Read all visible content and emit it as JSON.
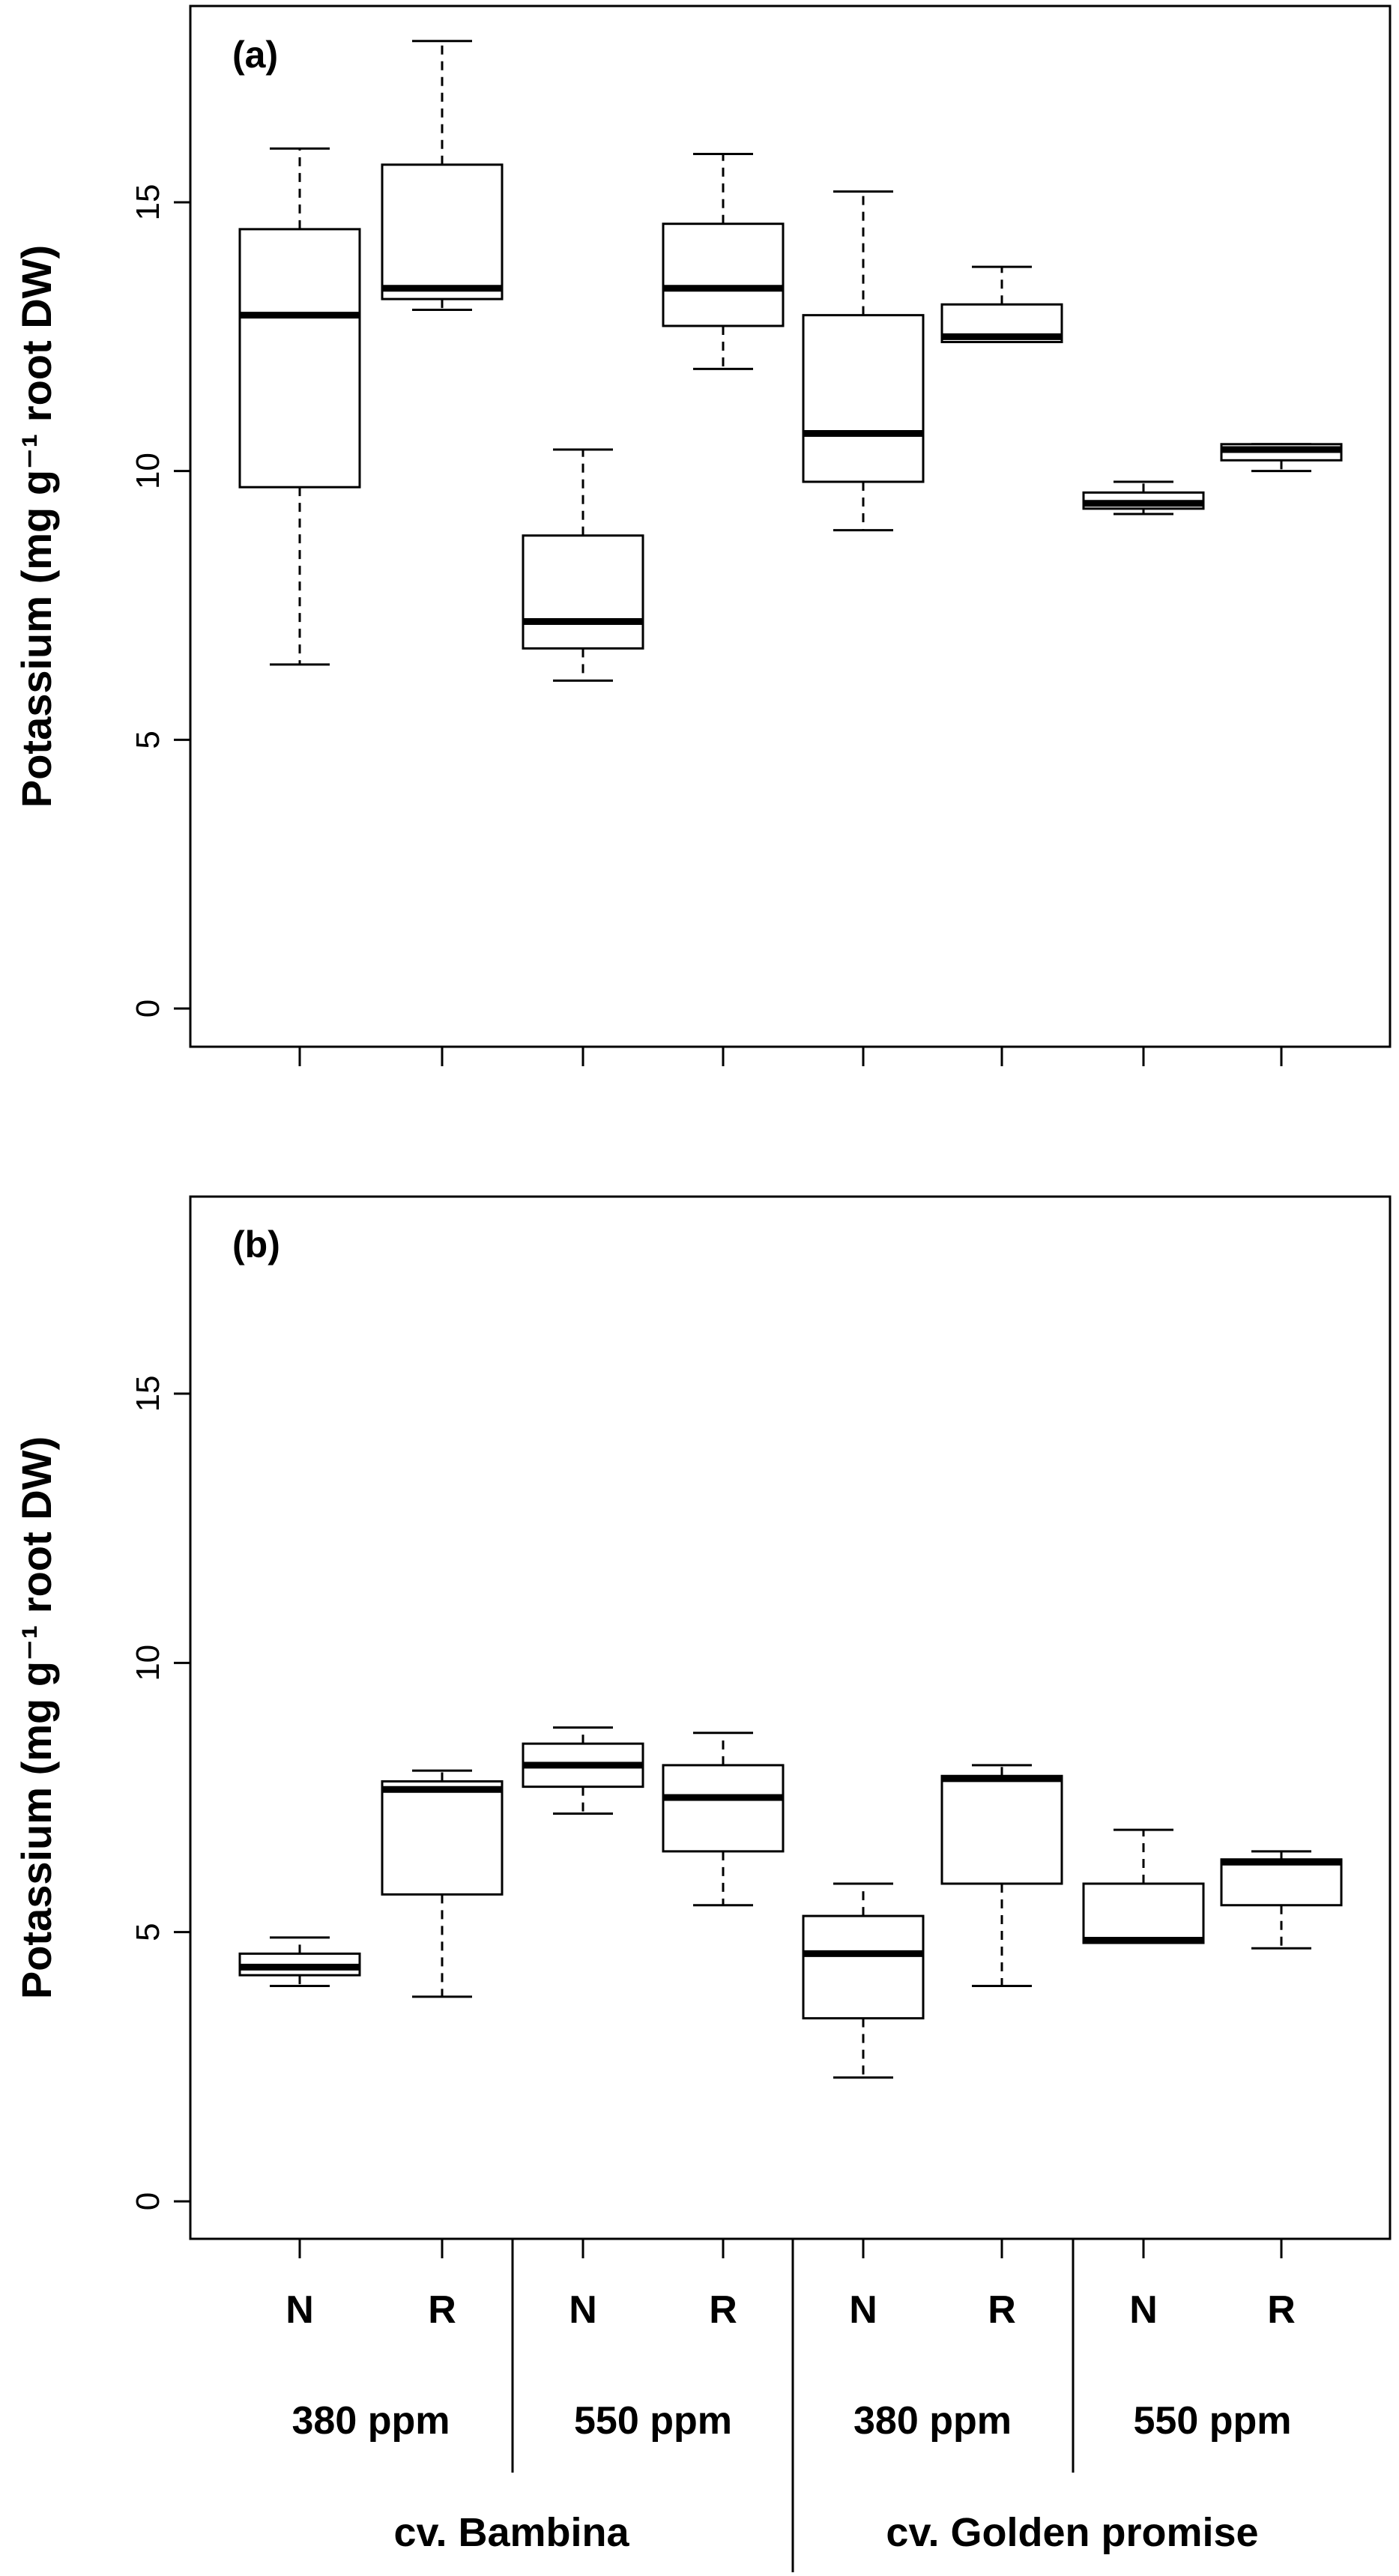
{
  "chart_data": [
    {
      "type": "boxplot",
      "panel_label": "(a)",
      "ylabel": "Potassium (mg g⁻¹ root DW)",
      "ylim": [
        0,
        18.5
      ],
      "yticks": [
        0,
        5,
        10,
        15
      ],
      "categories": [
        "380 ppm N",
        "380 ppm R",
        "550 ppm N",
        "550 ppm R",
        "380 ppm N",
        "380 ppm R",
        "550 ppm N",
        "550 ppm R"
      ],
      "groups": [
        "cv. Bambina",
        "cv. Bambina",
        "cv. Bambina",
        "cv. Bambina",
        "cv. Golden promise",
        "cv. Golden promise",
        "cv. Golden promise",
        "cv. Golden promise"
      ],
      "boxes": [
        {
          "min": 6.4,
          "q1": 9.7,
          "median": 12.9,
          "q3": 14.5,
          "max": 16.0
        },
        {
          "min": 13.0,
          "q1": 13.2,
          "median": 13.4,
          "q3": 15.7,
          "max": 18.0
        },
        {
          "min": 6.1,
          "q1": 6.7,
          "median": 7.2,
          "q3": 8.8,
          "max": 10.4
        },
        {
          "min": 11.9,
          "q1": 12.7,
          "median": 13.4,
          "q3": 14.6,
          "max": 15.9
        },
        {
          "min": 8.9,
          "q1": 9.8,
          "median": 10.7,
          "q3": 12.9,
          "max": 15.2
        },
        {
          "min": 12.4,
          "q1": 12.4,
          "median": 12.5,
          "q3": 13.1,
          "max": 13.8
        },
        {
          "min": 9.2,
          "q1": 9.3,
          "median": 9.4,
          "q3": 9.6,
          "max": 9.8
        },
        {
          "min": 10.0,
          "q1": 10.2,
          "median": 10.4,
          "q3": 10.5,
          "max": 10.5
        }
      ]
    },
    {
      "type": "boxplot",
      "panel_label": "(b)",
      "ylabel": "Potassium (mg g⁻¹ root DW)",
      "ylim": [
        0,
        18.5
      ],
      "yticks": [
        0,
        5,
        10,
        15
      ],
      "categories": [
        "380 ppm N",
        "380 ppm R",
        "550 ppm N",
        "550 ppm R",
        "380 ppm N",
        "380 ppm R",
        "550 ppm N",
        "550 ppm R"
      ],
      "groups": [
        "cv. Bambina",
        "cv. Bambina",
        "cv. Bambina",
        "cv. Bambina",
        "cv. Golden promise",
        "cv. Golden promise",
        "cv. Golden promise",
        "cv. Golden promise"
      ],
      "boxes": [
        {
          "min": 4.0,
          "q1": 4.2,
          "median": 4.35,
          "q3": 4.6,
          "max": 4.9
        },
        {
          "min": 3.8,
          "q1": 5.7,
          "median": 7.65,
          "q3": 7.8,
          "max": 8.0
        },
        {
          "min": 7.2,
          "q1": 7.7,
          "median": 8.1,
          "q3": 8.5,
          "max": 8.8
        },
        {
          "min": 5.5,
          "q1": 6.5,
          "median": 7.5,
          "q3": 8.1,
          "max": 8.7
        },
        {
          "min": 2.3,
          "q1": 3.4,
          "median": 4.6,
          "q3": 5.3,
          "max": 5.9
        },
        {
          "min": 4.0,
          "q1": 5.9,
          "median": 7.85,
          "q3": 7.9,
          "max": 8.1
        },
        {
          "min": 4.8,
          "q1": 4.8,
          "median": 4.85,
          "q3": 5.9,
          "max": 6.9
        },
        {
          "min": 4.7,
          "q1": 5.5,
          "median": 6.3,
          "q3": 6.35,
          "max": 6.5
        }
      ]
    }
  ],
  "x_axis": {
    "treatments": [
      "N",
      "R",
      "N",
      "R",
      "N",
      "R",
      "N",
      "R"
    ],
    "co2_levels": [
      "380 ppm",
      "550 ppm",
      "380 ppm",
      "550 ppm"
    ],
    "cultivars": [
      "cv. Bambina",
      "cv. Golden promise"
    ]
  },
  "colors": {
    "box_fill": "#ffffff",
    "stroke": "#000000"
  }
}
